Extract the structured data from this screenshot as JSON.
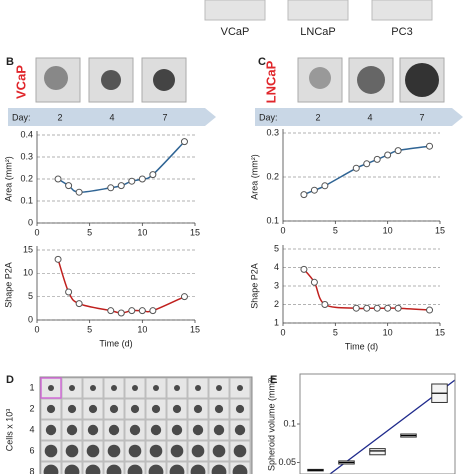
{
  "figure": {
    "top_labels": [
      "VCaP",
      "LNCaP",
      "PC3"
    ],
    "panels": [
      {
        "letter": "B",
        "cell_line": "VCaP",
        "day_label": "Day:",
        "days": [
          "2",
          "4",
          "7"
        ]
      },
      {
        "letter": "C",
        "cell_line": "LNCaP",
        "day_label": "Day:",
        "days": [
          "2",
          "4",
          "7"
        ]
      }
    ],
    "panel_d": {
      "letter": "D",
      "ylabel": "Cells x 10³",
      "rows": [
        "1",
        "2",
        "4",
        "6",
        "8"
      ]
    },
    "panel_e": {
      "letter": "E"
    }
  },
  "chart_data": [
    {
      "type": "line",
      "ylabel": "Area (mm²)",
      "x": [
        2,
        3,
        4,
        7,
        8,
        9,
        10,
        11,
        14
      ],
      "series": [
        {
          "color": "#2f6494",
          "values": [
            0.2,
            0.17,
            0.14,
            0.16,
            0.17,
            0.19,
            0.2,
            0.22,
            0.37
          ]
        }
      ],
      "xlim": [
        0,
        15
      ],
      "xticks": [
        0,
        5,
        10,
        15
      ],
      "ylim": [
        0,
        0.4
      ],
      "yticks": [
        0,
        0.1,
        0.2,
        0.3,
        0.4
      ],
      "grid": true
    },
    {
      "type": "line",
      "ylabel": "Shape P2A",
      "xlabel": "Time (d)",
      "x": [
        2,
        3,
        4,
        7,
        8,
        9,
        10,
        11,
        14
      ],
      "series": [
        {
          "color": "#c0201e",
          "values": [
            13,
            6,
            3.5,
            2,
            1.5,
            2,
            2,
            2,
            5
          ]
        }
      ],
      "xlim": [
        0,
        15
      ],
      "xticks": [
        0,
        5,
        10,
        15
      ],
      "ylim": [
        0,
        15
      ],
      "yticks": [
        0,
        5,
        10,
        15
      ],
      "grid": true
    },
    {
      "type": "line",
      "ylabel": "Area (mm²)",
      "x": [
        2,
        3,
        4,
        7,
        8,
        9,
        10,
        11,
        14
      ],
      "series": [
        {
          "color": "#2f6494",
          "values": [
            0.16,
            0.17,
            0.18,
            0.22,
            0.23,
            0.24,
            0.25,
            0.26,
            0.27
          ]
        }
      ],
      "xlim": [
        0,
        15
      ],
      "xticks": [
        0,
        5,
        10,
        15
      ],
      "ylim": [
        0.1,
        0.3
      ],
      "yticks": [
        0.1,
        0.2,
        0.3
      ],
      "grid": true
    },
    {
      "type": "line",
      "ylabel": "Shape P2A",
      "xlabel": "Time (d)",
      "x": [
        2,
        3,
        4,
        7,
        8,
        9,
        10,
        11,
        14
      ],
      "series": [
        {
          "color": "#c0201e",
          "values": [
            3.9,
            3.2,
            2,
            1.8,
            1.8,
            1.8,
            1.8,
            1.8,
            1.7
          ]
        }
      ],
      "xlim": [
        0,
        15
      ],
      "xticks": [
        0,
        5,
        10,
        15
      ],
      "ylim": [
        1,
        5
      ],
      "yticks": [
        1,
        2,
        3,
        4,
        5
      ],
      "grid": true
    },
    {
      "type": "box",
      "ylabel": "Spheroid volume (mm³)",
      "categories": [
        null,
        null,
        null,
        null,
        null
      ],
      "q1": [
        0.039,
        0.048,
        0.06,
        0.083,
        0.128
      ],
      "median": [
        0.04,
        0.05,
        0.065,
        0.085,
        0.14
      ],
      "q3": [
        0.041,
        0.052,
        0.068,
        0.087,
        0.152
      ],
      "ylim": [
        0.035,
        0.165
      ],
      "yticks": [
        0.05,
        0.1
      ],
      "grid": false
    }
  ]
}
